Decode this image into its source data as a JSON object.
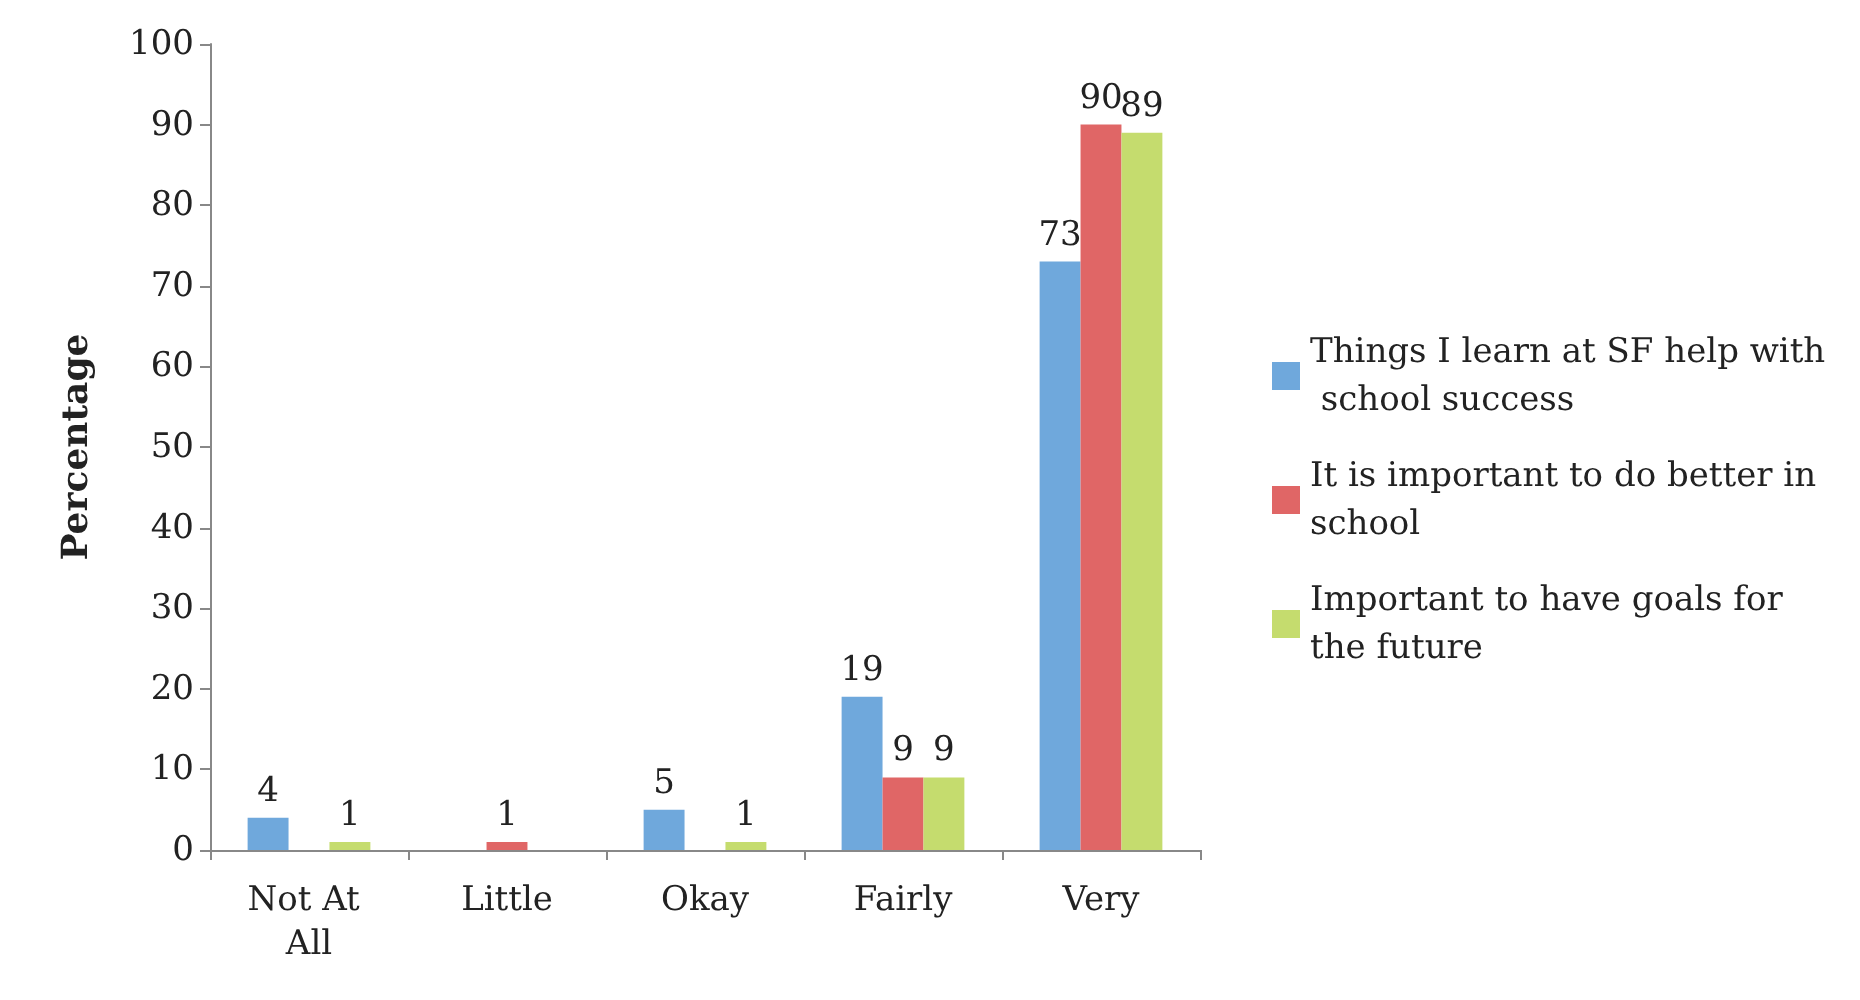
{
  "chart_data": {
    "type": "bar",
    "ylabel": "Percentage",
    "categories": [
      "Not At All",
      "Little",
      "Okay",
      "Fairly",
      "Very"
    ],
    "series": [
      {
        "name": "Things I learn at SF help with school success",
        "color": "#6fa8dc",
        "values": [
          4,
          null,
          5,
          19,
          73
        ]
      },
      {
        "name": "It is important to do better in school",
        "color": "#e06666",
        "values": [
          null,
          1,
          null,
          9,
          90
        ]
      },
      {
        "name": "Important to have goals for the future",
        "color": "#c5dc6e",
        "values": [
          1,
          null,
          1,
          9,
          89
        ]
      }
    ],
    "ylim": [
      0,
      100
    ],
    "yticks": [
      0,
      10,
      20,
      30,
      40,
      50,
      60,
      70,
      80,
      90,
      100
    ],
    "grid": false,
    "legend": "right",
    "data_labels": true
  }
}
